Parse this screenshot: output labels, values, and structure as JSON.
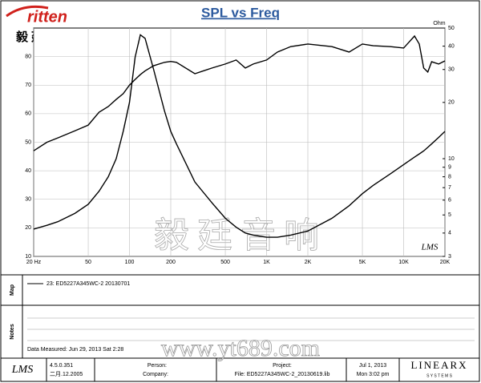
{
  "chart_data": {
    "type": "line",
    "title": "SPL vs Freq",
    "x": [
      20,
      25,
      30,
      40,
      50,
      60,
      70,
      80,
      90,
      100,
      110,
      120,
      130,
      150,
      180,
      200,
      220,
      300,
      400,
      500,
      600,
      700,
      800,
      1000,
      1200,
      1500,
      2000,
      3000,
      4000,
      5000,
      6000,
      8000,
      10000,
      12000,
      13000,
      14000,
      15000,
      16000,
      18000,
      20000
    ],
    "series": [
      {
        "name": "23: ED5227A345WC-2   20130701",
        "color": "#000000",
        "values": [
          47,
          50,
          51.5,
          54,
          56,
          60.5,
          62.5,
          65,
          67,
          70,
          72,
          73.7,
          75,
          76.8,
          78,
          78.3,
          78,
          74,
          76,
          77.4,
          78.8,
          76,
          77.4,
          78.8,
          81.6,
          83.5,
          84.4,
          83.5,
          81.6,
          84.4,
          83.8,
          83.5,
          83,
          87.2,
          84.4,
          76,
          74.6,
          78.2,
          77.4,
          78.5
        ]
      },
      {
        "color": "#000000",
        "axis": "y2",
        "values": [
          4.2,
          4.4,
          4.6,
          5.1,
          5.7,
          6.7,
          8,
          10,
          14,
          20,
          35,
          46,
          44,
          30,
          18,
          14,
          12,
          7.5,
          5.8,
          4.8,
          4.3,
          4.0,
          3.9,
          3.8,
          3.8,
          3.9,
          4.1,
          4.8,
          5.6,
          6.5,
          7.2,
          8.3,
          9.3,
          10.2,
          10.6,
          11,
          11.5,
          12,
          13,
          14
        ]
      }
    ],
    "xlim": [
      20,
      20000
    ],
    "xscale": "log",
    "xticks": [
      {
        "value": 20,
        "label": "20 Hz"
      },
      50,
      100,
      200,
      500,
      {
        "value": 1000,
        "label": "1K"
      },
      {
        "value": 2000,
        "label": "2K"
      },
      {
        "value": 5000,
        "label": "5K"
      },
      {
        "value": 10000,
        "label": "10K"
      },
      {
        "value": 20000,
        "label": "20K"
      }
    ],
    "ylim": [
      10,
      90
    ],
    "yticks": [
      10,
      20,
      30,
      40,
      50,
      60,
      70,
      80
    ],
    "y2lim": [
      3,
      50
    ],
    "y2scale": "log",
    "y2label": "Ohm",
    "y2ticks": [
      3,
      4,
      5,
      6,
      7,
      8,
      9,
      10,
      20,
      30,
      40,
      50
    ],
    "grid": true,
    "watermark": "LMS"
  },
  "logo": {
    "brand": "ritten",
    "chinese": "毅廷音响"
  },
  "watermark": {
    "chinese": "毅廷音响",
    "url": "www.yt689.com"
  },
  "panels": {
    "map": "Map",
    "notes": "Notes",
    "measured": "Data Measured: Jun 29, 2013  Sat  2:28"
  },
  "footer": {
    "logo": "LMS",
    "version": "4.5.0.351",
    "build_date": "二月.12.2005",
    "person": "Person:",
    "company": "Company:",
    "project": "Project:",
    "file": "File: ED5227A345WC-2_20130619.lib",
    "date": "Jul  1, 2013",
    "time": "Mon  3:02 pm",
    "brand": "LINEARX",
    "brand_sub": "S Y S T E M S"
  }
}
